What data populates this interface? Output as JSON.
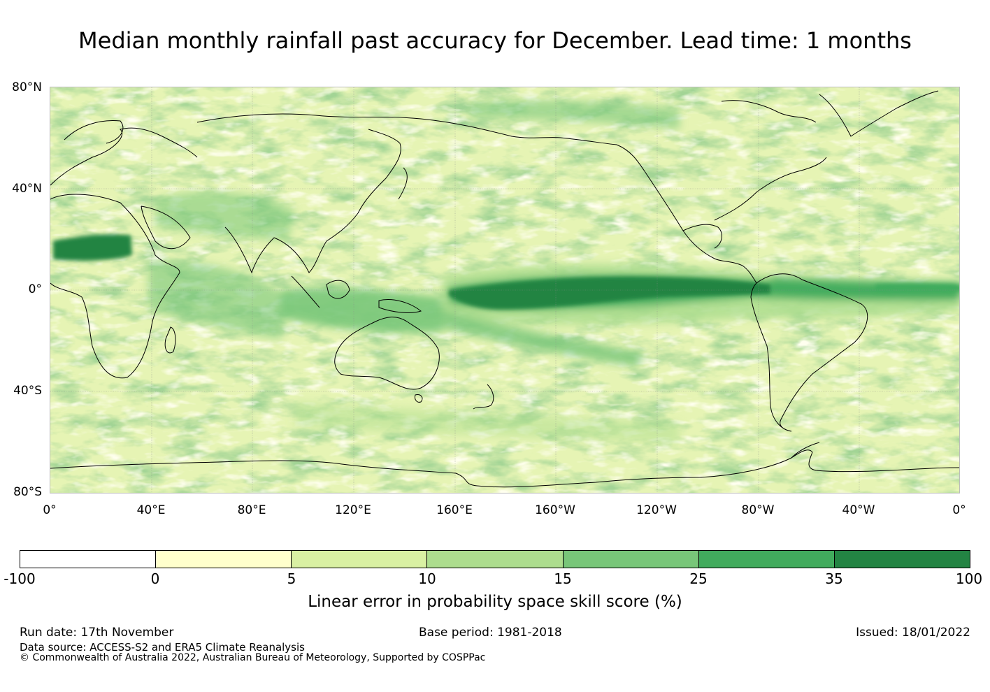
{
  "title": "Median monthly rainfall past accuracy for December. Lead time: 1 months",
  "map": {
    "latitude_labels": [
      "80°N",
      "40°N",
      "0°",
      "40°S",
      "80°S"
    ],
    "longitude_labels": [
      "0°",
      "40°E",
      "80°E",
      "120°E",
      "160°E",
      "160°W",
      "120°W",
      "80°W",
      "40°W",
      "0°"
    ]
  },
  "legend": {
    "title": "Linear error in probability space skill score (%)",
    "ticks": [
      "-100",
      "0",
      "5",
      "10",
      "15",
      "25",
      "35",
      "100"
    ],
    "colors": [
      "#ffffff",
      "#ffffcc",
      "#d9f0a3",
      "#addd8e",
      "#78c679",
      "#41ab5d",
      "#238443"
    ]
  },
  "footer": {
    "run_date": "Run date: 17th November",
    "base_period": "Base period: 1981-2018",
    "issued": "Issued: 18/01/2022",
    "data_source": "Data source: ACCESS-S2 and ERA5 Climate Reanalysis",
    "copyright": "© Commonwealth of Australia 2022, Australian Bureau of Meteorology, Supported by COSPPac"
  }
}
